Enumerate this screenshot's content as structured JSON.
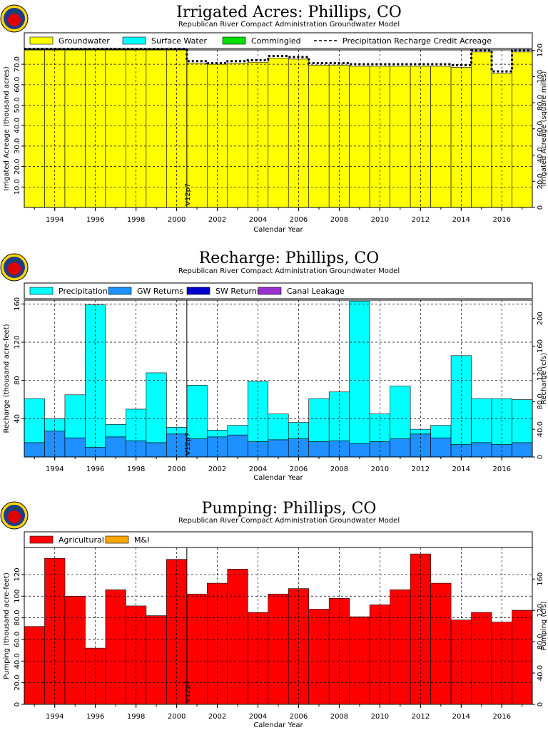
{
  "colors": {
    "groundwater": "#ffff00",
    "surface_water": "#00ffff",
    "commingled": "#00dd00",
    "precipitation": "#00ffff",
    "gw_returns": "#1e90ff",
    "sw_returns": "#0000cd",
    "canal_leakage": "#9932cc",
    "agricultural": "#ff0000",
    "mi": "#ffa500"
  },
  "chart_data": [
    {
      "type": "bar",
      "title": "Irrigated Acres: Phillips, CO",
      "subtitle": "Republican River Compact Administration Groundwater Model",
      "xlabel": "Calendar Year",
      "ylabel": "Irrigated Acreage (thousand acres)",
      "y2label": "Irrigated Acreage (square miles)",
      "annotation": "V12p7",
      "x": [
        1993,
        1994,
        1995,
        1996,
        1997,
        1998,
        1999,
        2000,
        2001,
        2002,
        2003,
        2004,
        2005,
        2006,
        2007,
        2008,
        2009,
        2010,
        2011,
        2012,
        2013,
        2014,
        2015,
        2016,
        2017
      ],
      "ylim": [
        0,
        77
      ],
      "y2lim": [
        0,
        120.3
      ],
      "xticks": [
        "1994",
        "1996",
        "1998",
        "2000",
        "2002",
        "2004",
        "2006",
        "2008",
        "2010",
        "2012",
        "2014",
        "2016"
      ],
      "yticks": [
        "10.0",
        "20.0",
        "30.0",
        "40.0",
        "50.0",
        "60.0",
        "70.0"
      ],
      "y2ticks": [
        "0",
        "20.0",
        "40.0",
        "60.0",
        "80.0",
        "100",
        "120"
      ],
      "legend": [
        "Groundwater",
        "Surface Water",
        "Commingled",
        "Precipitation Recharge Credit Acreage"
      ],
      "series": [
        {
          "name": "Groundwater",
          "values": [
            77.3,
            77.3,
            77.3,
            77.3,
            77.3,
            77.3,
            77.3,
            77.3,
            70.5,
            70.0,
            70.5,
            71.0,
            73.0,
            72.5,
            69.5,
            69.5,
            69.0,
            69.0,
            69.0,
            69.0,
            69.0,
            68.5,
            76.0,
            65.5,
            76.0
          ]
        },
        {
          "name": "Surface Water",
          "values": [
            0,
            0,
            0,
            0,
            0,
            0,
            0,
            0,
            0,
            0,
            0,
            0,
            0,
            0,
            0,
            0,
            0,
            0,
            0,
            0,
            0,
            0,
            0,
            0,
            0
          ]
        },
        {
          "name": "Commingled",
          "values": [
            0,
            0,
            0,
            0,
            0,
            0,
            0,
            0,
            0,
            0,
            0,
            0,
            0,
            0,
            0,
            0,
            0,
            0,
            0,
            0,
            0,
            0,
            0,
            0,
            0
          ]
        },
        {
          "name": "Precipitation Recharge Credit Acreage",
          "values": [
            77.5,
            77.5,
            77.5,
            77.5,
            77.5,
            77.5,
            77.5,
            77.5,
            71.5,
            70.5,
            71.5,
            72.0,
            74.0,
            73.5,
            70.5,
            70.5,
            70.0,
            70.0,
            70.0,
            70.0,
            70.0,
            69.5,
            76.8,
            66.5,
            76.8
          ]
        }
      ]
    },
    {
      "type": "bar",
      "title": "Recharge: Phillips, CO",
      "subtitle": "Republican River Compact Administration Groundwater Model",
      "xlabel": "Calendar Year",
      "ylabel": "Recharge (thousand acre-feet)",
      "y2label": "Recharge (cfs)",
      "annotation": "V12p7",
      "x": [
        1993,
        1994,
        1995,
        1996,
        1997,
        1998,
        1999,
        2000,
        2001,
        2002,
        2003,
        2004,
        2005,
        2006,
        2007,
        2008,
        2009,
        2010,
        2011,
        2012,
        2013,
        2014,
        2015,
        2016,
        2017
      ],
      "ylim": [
        0,
        164
      ],
      "y2lim": [
        0,
        226.5
      ],
      "xticks": [
        "1994",
        "1996",
        "1998",
        "2000",
        "2002",
        "2004",
        "2006",
        "2008",
        "2010",
        "2012",
        "2014",
        "2016"
      ],
      "yticks": [
        "40",
        "80",
        "120",
        "160"
      ],
      "y2ticks": [
        "0",
        "40.0",
        "80.0",
        "120",
        "160",
        "200"
      ],
      "legend": [
        "Precipitation",
        "GW Returns",
        "SW Returns",
        "Canal Leakage"
      ],
      "series": [
        {
          "name": "GW Returns",
          "values": [
            15,
            27,
            20,
            10,
            21,
            17,
            15,
            24,
            19,
            21,
            23,
            16,
            18,
            19,
            16,
            17,
            14,
            16,
            19,
            24,
            20,
            13,
            15,
            13,
            15
          ]
        },
        {
          "name": "Precipitation",
          "values": [
            46,
            13,
            45,
            149,
            13,
            33,
            73,
            7,
            56,
            7,
            10,
            63,
            27,
            17,
            45,
            51,
            149,
            29,
            55,
            5,
            13,
            93,
            46,
            48,
            45
          ]
        },
        {
          "name": "SW Returns",
          "values": [
            0,
            0,
            0,
            0,
            0,
            0,
            0,
            0,
            0,
            0,
            0,
            0,
            0,
            0,
            0,
            0,
            0,
            0,
            0,
            0,
            0,
            0,
            0,
            0,
            0
          ]
        },
        {
          "name": "Canal Leakage",
          "values": [
            0,
            0,
            0,
            0,
            0,
            0,
            0,
            0,
            0,
            0,
            0,
            0,
            0,
            0,
            0,
            0,
            0,
            0,
            0,
            0,
            0,
            0,
            0,
            0,
            0
          ]
        }
      ]
    },
    {
      "type": "bar",
      "title": "Pumping: Phillips, CO",
      "subtitle": "Republican River Compact Administration Groundwater Model",
      "xlabel": "Calendar Year",
      "ylabel": "Pumping (thousand acre-feet)",
      "y2label": "Pumping (cfs)",
      "annotation": "V12p7",
      "x": [
        1993,
        1994,
        1995,
        1996,
        1997,
        1998,
        1999,
        2000,
        2001,
        2002,
        2003,
        2004,
        2005,
        2006,
        2007,
        2008,
        2009,
        2010,
        2011,
        2012,
        2013,
        2014,
        2015,
        2016,
        2017
      ],
      "ylim": [
        0,
        145
      ],
      "y2lim": [
        0,
        200.3
      ],
      "xticks": [
        "1994",
        "1996",
        "1998",
        "2000",
        "2002",
        "2004",
        "2006",
        "2008",
        "2010",
        "2012",
        "2014",
        "2016"
      ],
      "yticks": [
        "0",
        "20.0",
        "40.0",
        "60.0",
        "80.0",
        "100",
        "120"
      ],
      "y2ticks": [
        "0",
        "40.0",
        "80.0",
        "120",
        "160"
      ],
      "legend": [
        "Agricultural",
        "M&I"
      ],
      "series": [
        {
          "name": "Agricultural",
          "values": [
            72,
            135,
            100,
            52,
            106,
            91,
            82,
            134,
            102,
            112,
            125,
            85,
            102,
            107,
            88,
            98,
            81,
            92,
            106,
            139,
            112,
            78,
            85,
            76,
            87
          ]
        },
        {
          "name": "M&I",
          "values": [
            0.5,
            0.5,
            0.5,
            0.5,
            0.5,
            0.5,
            0.5,
            0.5,
            0.5,
            0.5,
            0.5,
            0.5,
            0.5,
            0.5,
            0.5,
            0.5,
            0.5,
            0.5,
            0.5,
            0.5,
            0.5,
            0.5,
            0.5,
            0.5,
            0.5
          ]
        }
      ]
    }
  ]
}
